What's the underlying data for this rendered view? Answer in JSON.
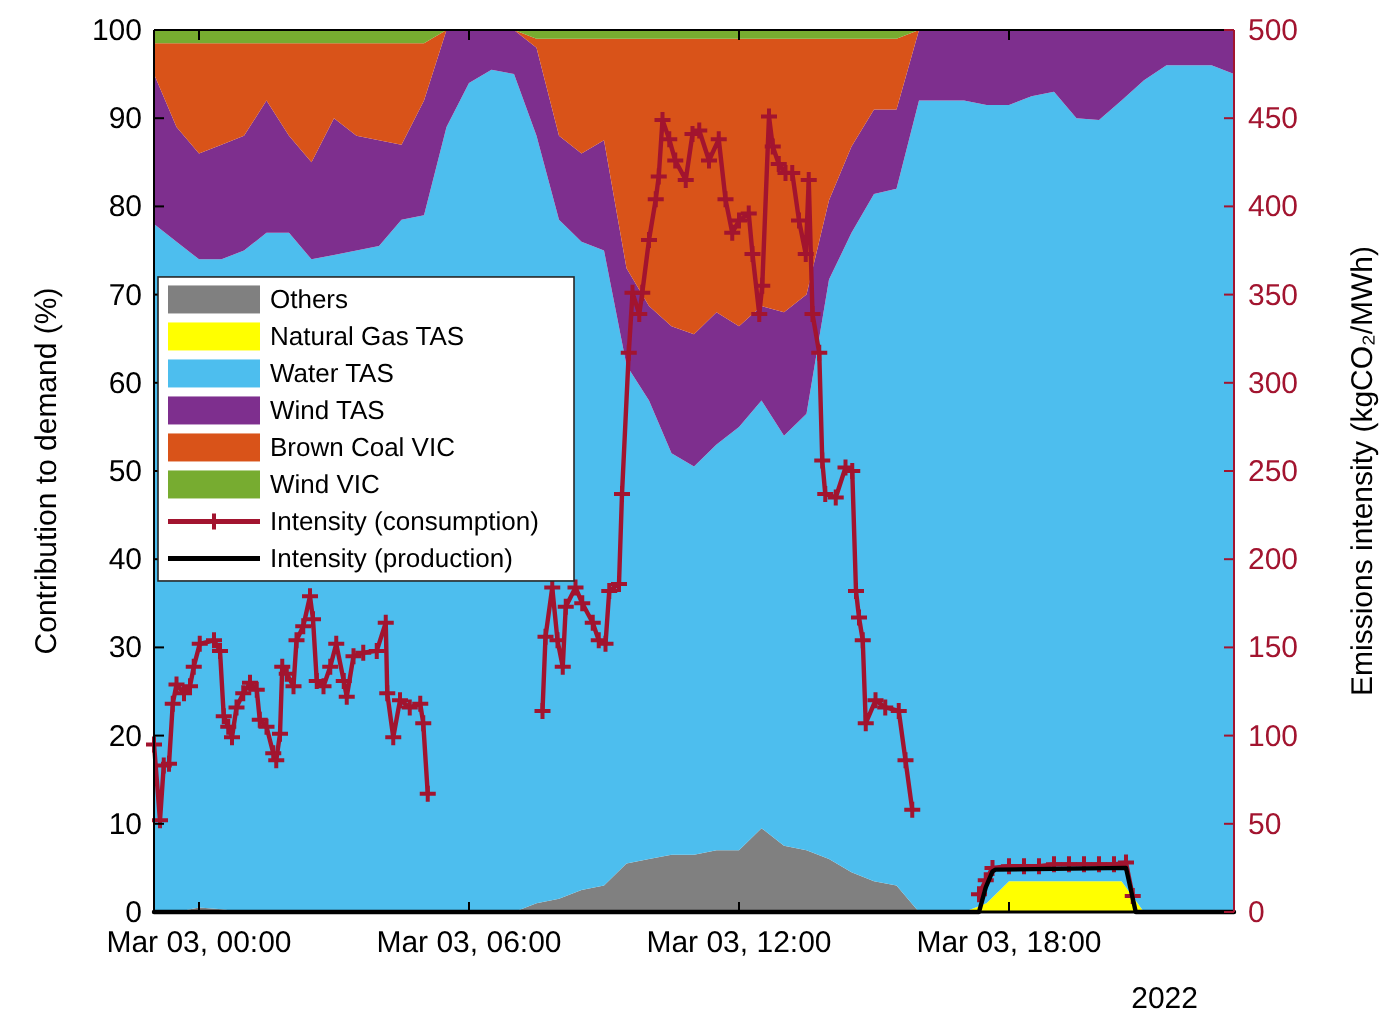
{
  "chart_data": {
    "type": "area",
    "stacked": true,
    "ylabel": "Contribution to demand (%)",
    "y2label": "Emissions intensity (kgCO₂/MWh)",
    "annotations": [
      "2022"
    ],
    "legend": "left",
    "xlim": [
      "2022-03-02T23:00",
      "2022-03-03T23:00"
    ],
    "xticks": [
      {
        "value": "2022-03-03T00:00",
        "label": "Mar 03, 00:00"
      },
      {
        "value": "2022-03-03T06:00",
        "label": "Mar 03, 06:00"
      },
      {
        "value": "2022-03-03T12:00",
        "label": "Mar 03, 12:00"
      },
      {
        "value": "2022-03-03T18:00",
        "label": "Mar 03, 18:00"
      }
    ],
    "ylim": [
      0,
      100
    ],
    "yticks": [
      0,
      10,
      20,
      30,
      40,
      50,
      60,
      70,
      80,
      90,
      100
    ],
    "y2lim": [
      0,
      500
    ],
    "y2ticks": [
      0,
      50,
      100,
      150,
      200,
      250,
      300,
      350,
      400,
      450,
      500
    ],
    "x": [
      "2022-03-02T23:00",
      "2022-03-02T23:30",
      "2022-03-03T00:00",
      "2022-03-03T00:30",
      "2022-03-03T01:00",
      "2022-03-03T01:30",
      "2022-03-03T02:00",
      "2022-03-03T02:30",
      "2022-03-03T03:00",
      "2022-03-03T03:30",
      "2022-03-03T04:00",
      "2022-03-03T04:30",
      "2022-03-03T05:00",
      "2022-03-03T05:30",
      "2022-03-03T06:00",
      "2022-03-03T06:30",
      "2022-03-03T07:00",
      "2022-03-03T07:30",
      "2022-03-03T08:00",
      "2022-03-03T08:30",
      "2022-03-03T09:00",
      "2022-03-03T09:30",
      "2022-03-03T10:00",
      "2022-03-03T10:30",
      "2022-03-03T11:00",
      "2022-03-03T11:30",
      "2022-03-03T12:00",
      "2022-03-03T12:30",
      "2022-03-03T13:00",
      "2022-03-03T13:30",
      "2022-03-03T14:00",
      "2022-03-03T14:30",
      "2022-03-03T15:00",
      "2022-03-03T15:30",
      "2022-03-03T16:00",
      "2022-03-03T16:30",
      "2022-03-03T17:00",
      "2022-03-03T17:30",
      "2022-03-03T18:00",
      "2022-03-03T18:30",
      "2022-03-03T19:00",
      "2022-03-03T19:30",
      "2022-03-03T20:00",
      "2022-03-03T20:30",
      "2022-03-03T21:00",
      "2022-03-03T21:30",
      "2022-03-03T22:00",
      "2022-03-03T22:30",
      "2022-03-03T23:00"
    ],
    "series": [
      {
        "name": "Others",
        "color": "#808080",
        "values": [
          0,
          0,
          0.5,
          0.3,
          0,
          0,
          0,
          0,
          0,
          0,
          0,
          0,
          0,
          0,
          0,
          0,
          0,
          1,
          1.5,
          2.5,
          3,
          5.5,
          6,
          6.5,
          6.5,
          7,
          7,
          9.5,
          7.5,
          7,
          6,
          4.5,
          3.5,
          3,
          0,
          null,
          null,
          null,
          null,
          null,
          null,
          null,
          null,
          null,
          null,
          null,
          null,
          null,
          null
        ]
      },
      {
        "name": "Natural Gas TAS",
        "color": "#ffff00",
        "values": [
          null,
          null,
          null,
          null,
          null,
          null,
          null,
          null,
          null,
          null,
          null,
          null,
          null,
          null,
          null,
          null,
          null,
          null,
          null,
          null,
          null,
          null,
          null,
          null,
          null,
          null,
          null,
          null,
          null,
          null,
          null,
          null,
          null,
          null,
          null,
          null,
          0,
          1,
          3.5,
          3.5,
          3.5,
          3.5,
          3.5,
          3.5,
          0,
          null,
          null,
          null,
          null
        ]
      },
      {
        "name": "Water TAS",
        "color": "#4dbeee",
        "values": [
          78,
          76,
          73.5,
          73.7,
          75,
          77,
          77,
          74,
          74.5,
          75,
          75.5,
          78.5,
          79,
          89,
          94,
          95.5,
          95,
          87,
          77,
          73.5,
          72,
          56.5,
          52,
          45.5,
          44,
          46,
          48,
          48.5,
          46.5,
          49.5,
          65.7,
          72.5,
          77.9,
          79,
          92,
          92,
          92,
          90.5,
          88,
          89,
          89.5,
          86.5,
          86.3,
          88.5,
          94.3,
          96,
          96,
          96,
          95
        ]
      },
      {
        "name": "Wind TAS",
        "color": "#7e2f8e",
        "values": [
          17,
          13,
          12,
          13,
          13,
          15,
          11,
          11,
          15.5,
          13,
          12,
          8.5,
          13,
          11,
          6,
          4.5,
          5,
          10,
          9.5,
          10,
          12.5,
          11,
          10.7,
          14.4,
          15,
          15,
          11.4,
          10.7,
          14,
          13.5,
          9,
          9.8,
          9.6,
          9,
          8,
          8,
          8,
          8.5,
          8.5,
          7.5,
          7,
          10,
          10.2,
          8,
          5.7,
          4,
          4,
          4,
          5
        ]
      },
      {
        "name": "Brown Coal VIC",
        "color": "#d95319",
        "values": [
          3.5,
          9.5,
          12.5,
          11.5,
          10.5,
          6.5,
          10.5,
          13.5,
          8.5,
          10.5,
          11,
          11.5,
          6.5,
          0,
          0,
          0,
          0,
          1,
          11,
          13,
          11.5,
          26,
          30.3,
          32.6,
          33.5,
          31,
          32.6,
          30.3,
          31,
          29,
          18.3,
          12.2,
          8,
          8,
          0,
          null,
          null,
          null,
          null,
          null,
          null,
          null,
          null,
          null,
          null,
          null,
          null,
          null,
          null
        ]
      },
      {
        "name": "Wind VIC",
        "color": "#77ac30",
        "values": [
          1.5,
          1.5,
          1.5,
          1.5,
          1.5,
          1.5,
          1.5,
          1.5,
          1.5,
          1.5,
          1.5,
          1.5,
          1.5,
          0,
          0,
          0,
          0,
          1,
          1,
          1,
          1,
          1,
          1,
          1,
          1,
          1,
          1,
          1,
          1,
          1,
          1,
          1,
          1,
          1,
          0,
          null,
          null,
          null,
          null,
          null,
          null,
          null,
          null,
          null,
          null,
          null,
          null,
          null,
          null
        ]
      },
      {
        "name": "Intensity (consumption)",
        "type": "line",
        "axis": "y2",
        "color": "#a2142f",
        "marker": "cross",
        "line_style": "solid",
        "x": [
          "2022-03-02T23:00",
          "2022-03-02T23:08",
          "2022-03-02T23:13",
          "2022-03-02T23:20",
          "2022-03-02T23:25",
          "2022-03-02T23:30",
          "2022-03-02T23:40",
          "2022-03-02T23:48",
          "2022-03-02T23:53",
          "2022-03-03T00:01",
          "2022-03-03T00:20",
          "2022-03-03T00:28",
          "2022-03-03T00:33",
          "2022-03-03T00:39",
          "2022-03-03T00:44",
          "2022-03-03T00:50",
          "2022-03-03T00:59",
          "2022-03-03T01:08",
          "2022-03-03T01:17",
          "2022-03-03T01:21",
          "2022-03-03T01:30",
          "2022-03-03T01:39",
          "2022-03-03T01:43",
          "2022-03-03T01:48",
          "2022-03-03T01:51",
          "2022-03-03T01:57",
          "2022-03-03T02:06",
          "2022-03-03T02:10",
          "2022-03-03T02:19",
          "2022-03-03T02:28",
          "2022-03-03T02:32",
          "2022-03-03T02:37",
          "2022-03-03T02:46",
          "2022-03-03T02:55",
          "2022-03-03T03:03",
          "2022-03-03T03:13",
          "2022-03-03T03:17",
          "2022-03-03T03:26",
          "2022-03-03T03:39",
          "2022-03-03T03:57",
          "2022-03-03T04:09",
          "2022-03-03T04:11",
          "2022-03-03T04:19",
          "2022-03-03T04:28",
          "2022-03-03T04:41",
          "2022-03-03T04:55",
          "2022-03-03T04:59",
          "2022-03-03T05:05",
          "2022-03-03T06:30",
          "2022-03-03T07:38",
          "2022-03-03T07:42",
          "2022-03-03T07:51",
          "2022-03-03T07:58",
          "2022-03-03T08:05",
          "2022-03-03T08:09",
          "2022-03-03T08:22",
          "2022-03-03T08:31",
          "2022-03-03T08:45",
          "2022-03-03T08:53",
          "2022-03-03T09:02",
          "2022-03-03T09:07",
          "2022-03-03T09:20",
          "2022-03-03T09:24",
          "2022-03-03T09:33",
          "2022-03-03T09:38",
          "2022-03-03T09:47",
          "2022-03-03T09:51",
          "2022-03-03T10:00",
          "2022-03-03T10:09",
          "2022-03-03T10:13",
          "2022-03-03T10:18",
          "2022-03-03T10:27",
          "2022-03-03T10:35",
          "2022-03-03T10:49",
          "2022-03-03T10:58",
          "2022-03-03T11:07",
          "2022-03-03T11:20",
          "2022-03-03T11:33",
          "2022-03-03T11:42",
          "2022-03-03T11:51",
          "2022-03-03T12:00",
          "2022-03-03T12:13",
          "2022-03-03T12:18",
          "2022-03-03T12:27",
          "2022-03-03T12:31",
          "2022-03-03T12:40",
          "2022-03-03T12:45",
          "2022-03-03T12:53",
          "2022-03-03T13:02",
          "2022-03-03T13:11",
          "2022-03-03T13:20",
          "2022-03-03T13:29",
          "2022-03-03T13:33",
          "2022-03-03T13:38",
          "2022-03-03T13:47",
          "2022-03-03T13:51",
          "2022-03-03T13:55",
          "2022-03-03T14:09",
          "2022-03-03T14:22",
          "2022-03-03T14:31",
          "2022-03-03T14:36",
          "2022-03-03T14:40",
          "2022-03-03T14:45",
          "2022-03-03T14:49",
          "2022-03-03T15:02",
          "2022-03-03T15:15",
          "2022-03-03T15:33",
          "2022-03-03T15:42",
          "2022-03-03T15:51",
          "2022-03-03T16:30",
          "2022-03-03T17:20",
          "2022-03-03T17:29",
          "2022-03-03T17:38",
          "2022-03-03T18:00",
          "2022-03-03T18:20",
          "2022-03-03T18:40",
          "2022-03-03T19:00",
          "2022-03-03T19:20",
          "2022-03-03T19:40",
          "2022-03-03T20:00",
          "2022-03-03T20:20",
          "2022-03-03T20:36",
          "2022-03-03T20:45"
        ],
        "values": [
          95,
          52,
          83,
          84,
          118,
          129,
          124,
          128,
          139,
          152,
          154,
          148,
          111,
          105,
          99,
          116,
          124,
          130,
          126,
          109,
          105,
          90,
          86,
          101,
          139,
          135,
          128,
          154,
          162,
          179,
          166,
          131,
          128,
          139,
          152,
          131,
          122,
          145,
          147,
          148,
          164,
          124,
          99,
          120,
          116,
          118,
          107,
          67,
          null,
          114,
          156,
          184,
          154,
          139,
          173,
          184,
          175,
          164,
          154,
          152,
          182,
          186,
          237,
          317,
          351,
          339,
          351,
          381,
          404,
          417,
          449,
          438,
          426,
          415,
          441,
          443,
          426,
          438,
          404,
          385,
          392,
          396,
          373,
          339,
          355,
          451,
          434,
          424,
          419,
          419,
          392,
          373,
          415,
          339,
          317,
          256,
          237,
          235,
          252,
          250,
          182,
          167,
          154,
          107,
          120,
          116,
          114,
          86,
          58,
          null,
          10,
          18,
          25,
          26,
          26,
          26,
          27,
          27,
          27,
          27,
          27,
          28,
          9
        ]
      },
      {
        "name": "Intensity (production)",
        "type": "line",
        "axis": "y2",
        "color": "#000000",
        "line_style": "solid",
        "x": [
          "2022-03-02T23:00",
          "2022-03-03T17:20",
          "2022-03-03T17:29",
          "2022-03-03T17:38",
          "2022-03-03T17:42",
          "2022-03-03T20:36",
          "2022-03-03T20:49",
          "2022-03-03T23:00"
        ],
        "values": [
          0,
          0,
          14,
          23,
          24,
          25,
          0,
          0
        ]
      }
    ]
  }
}
